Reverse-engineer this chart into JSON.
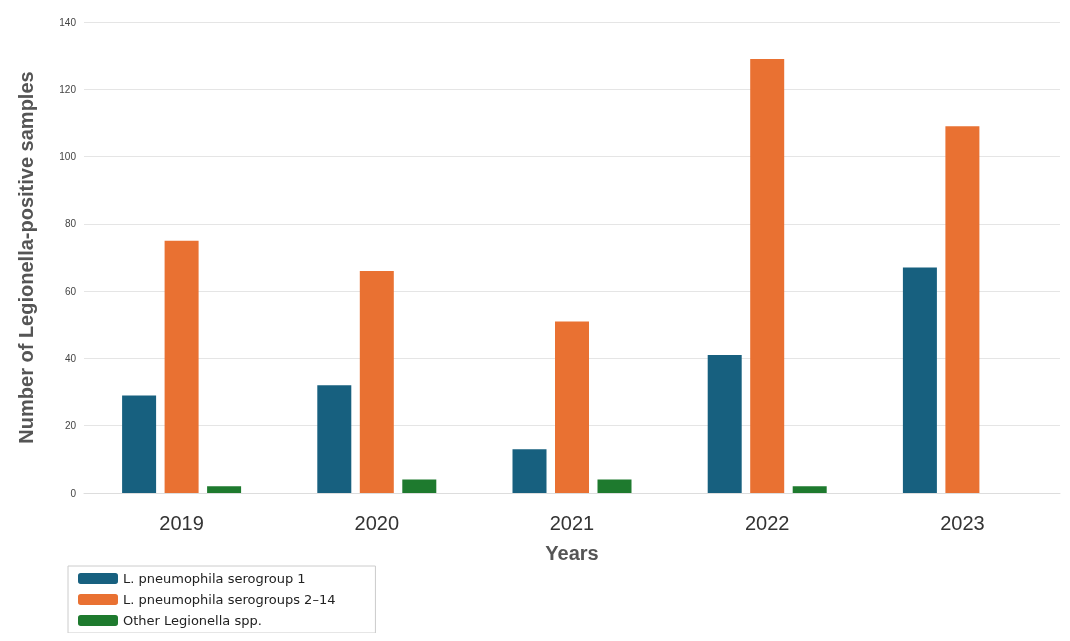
{
  "chart_data": {
    "type": "bar",
    "xlabel": "Years",
    "ylabel": "Number of Legionella-positive samples",
    "categories": [
      "2019",
      "2020",
      "2021",
      "2022",
      "2023"
    ],
    "series": [
      {
        "name": "L. pneumophila serogroup 1",
        "color": "#17607f",
        "values": [
          29,
          32,
          13,
          41,
          67
        ]
      },
      {
        "name": "L. pneumophila serogroups 2–14",
        "color": "#e97132",
        "values": [
          75,
          66,
          51,
          129,
          109
        ]
      },
      {
        "name": "Other Legionella spp.",
        "color": "#1e7a2e",
        "values": [
          2,
          4,
          4,
          2,
          0
        ]
      }
    ],
    "ylim": [
      0,
      140
    ],
    "yticks": [
      0,
      20,
      40,
      60,
      80,
      100,
      120,
      140
    ],
    "grid": "y",
    "legend": "bottom left"
  }
}
